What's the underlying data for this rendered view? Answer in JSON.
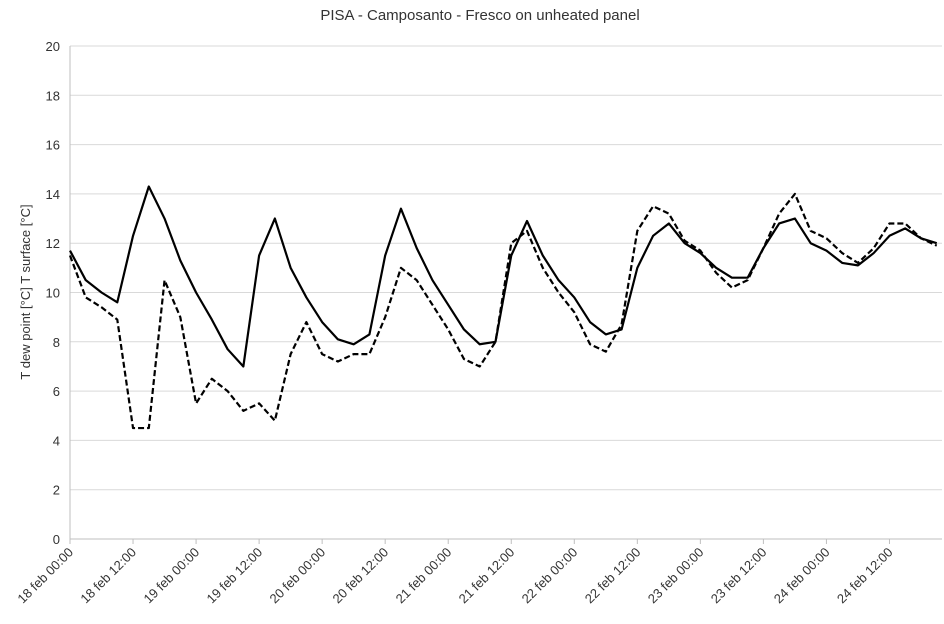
{
  "chart_data": {
    "type": "line",
    "title": "PISA - Camposanto - Fresco on unheated panel",
    "y_label": "T dew point [°C]   T surface [°C]",
    "x": [
      0,
      3,
      6,
      9,
      12,
      15,
      18,
      21,
      24,
      27,
      30,
      33,
      36,
      39,
      42,
      45,
      48,
      51,
      54,
      57,
      60,
      63,
      66,
      69,
      72,
      75,
      78,
      81,
      84,
      87,
      90,
      93,
      96,
      99,
      102,
      105,
      108,
      111,
      114,
      117,
      120,
      123,
      126,
      129,
      132,
      135,
      138,
      141,
      144,
      147,
      150,
      153,
      156,
      159,
      162,
      165
    ],
    "series": [
      {
        "color": "#000000",
        "dashed": false,
        "values": [
          11.7,
          10.5,
          10.0,
          9.6,
          12.3,
          14.3,
          13.0,
          11.3,
          10.0,
          8.9,
          7.7,
          7.0,
          11.5,
          13.0,
          11.0,
          9.8,
          8.8,
          8.1,
          7.9,
          8.3,
          11.5,
          13.4,
          11.8,
          10.5,
          9.5,
          8.5,
          7.9,
          8.0,
          11.5,
          12.9,
          11.5,
          10.5,
          9.8,
          8.8,
          8.3,
          8.5,
          11.0,
          12.3,
          12.8,
          12.0,
          11.6,
          11.0,
          10.6,
          10.6,
          11.8,
          12.8,
          13.0,
          12.0,
          11.7,
          11.2,
          11.1,
          11.6,
          12.3,
          12.6,
          12.2,
          12.0
        ]
      },
      {
        "color": "#000000",
        "dashed": true,
        "values": [
          11.5,
          9.8,
          9.4,
          8.9,
          4.5,
          4.5,
          10.5,
          9.0,
          5.5,
          6.5,
          6.0,
          5.2,
          5.5,
          4.8,
          7.5,
          8.8,
          7.5,
          7.2,
          7.5,
          7.5,
          9.0,
          11.0,
          10.5,
          9.5,
          8.5,
          7.3,
          7.0,
          8.0,
          12.0,
          12.5,
          11.0,
          10.0,
          9.2,
          7.9,
          7.6,
          8.7,
          12.5,
          13.5,
          13.2,
          12.1,
          11.7,
          10.8,
          10.2,
          10.5,
          11.8,
          13.2,
          14.0,
          12.5,
          12.2,
          11.6,
          11.2,
          11.8,
          12.8,
          12.8,
          12.2,
          11.9
        ]
      }
    ],
    "xlim": [
      0,
      166
    ],
    "xticks": [
      {
        "value": 0,
        "label": "18 feb 00:00"
      },
      {
        "value": 12,
        "label": "18 feb 12:00"
      },
      {
        "value": 24,
        "label": "19 feb 00:00"
      },
      {
        "value": 36,
        "label": "19 feb 12:00"
      },
      {
        "value": 48,
        "label": "20 feb 00:00"
      },
      {
        "value": 60,
        "label": "20 feb 12:00"
      },
      {
        "value": 72,
        "label": "21 feb 00:00"
      },
      {
        "value": 84,
        "label": "21 feb 12:00"
      },
      {
        "value": 96,
        "label": "22 feb 00:00"
      },
      {
        "value": 108,
        "label": "22 feb 12:00"
      },
      {
        "value": 120,
        "label": "23 feb 00:00"
      },
      {
        "value": 132,
        "label": "23 feb 12:00"
      },
      {
        "value": 144,
        "label": "24 feb 00:00"
      },
      {
        "value": 156,
        "label": "24 feb 12:00"
      }
    ],
    "ylim": [
      0,
      20
    ],
    "yticks": [
      0,
      2,
      4,
      6,
      8,
      10,
      12,
      14,
      16,
      18,
      20
    ],
    "grid": true
  }
}
